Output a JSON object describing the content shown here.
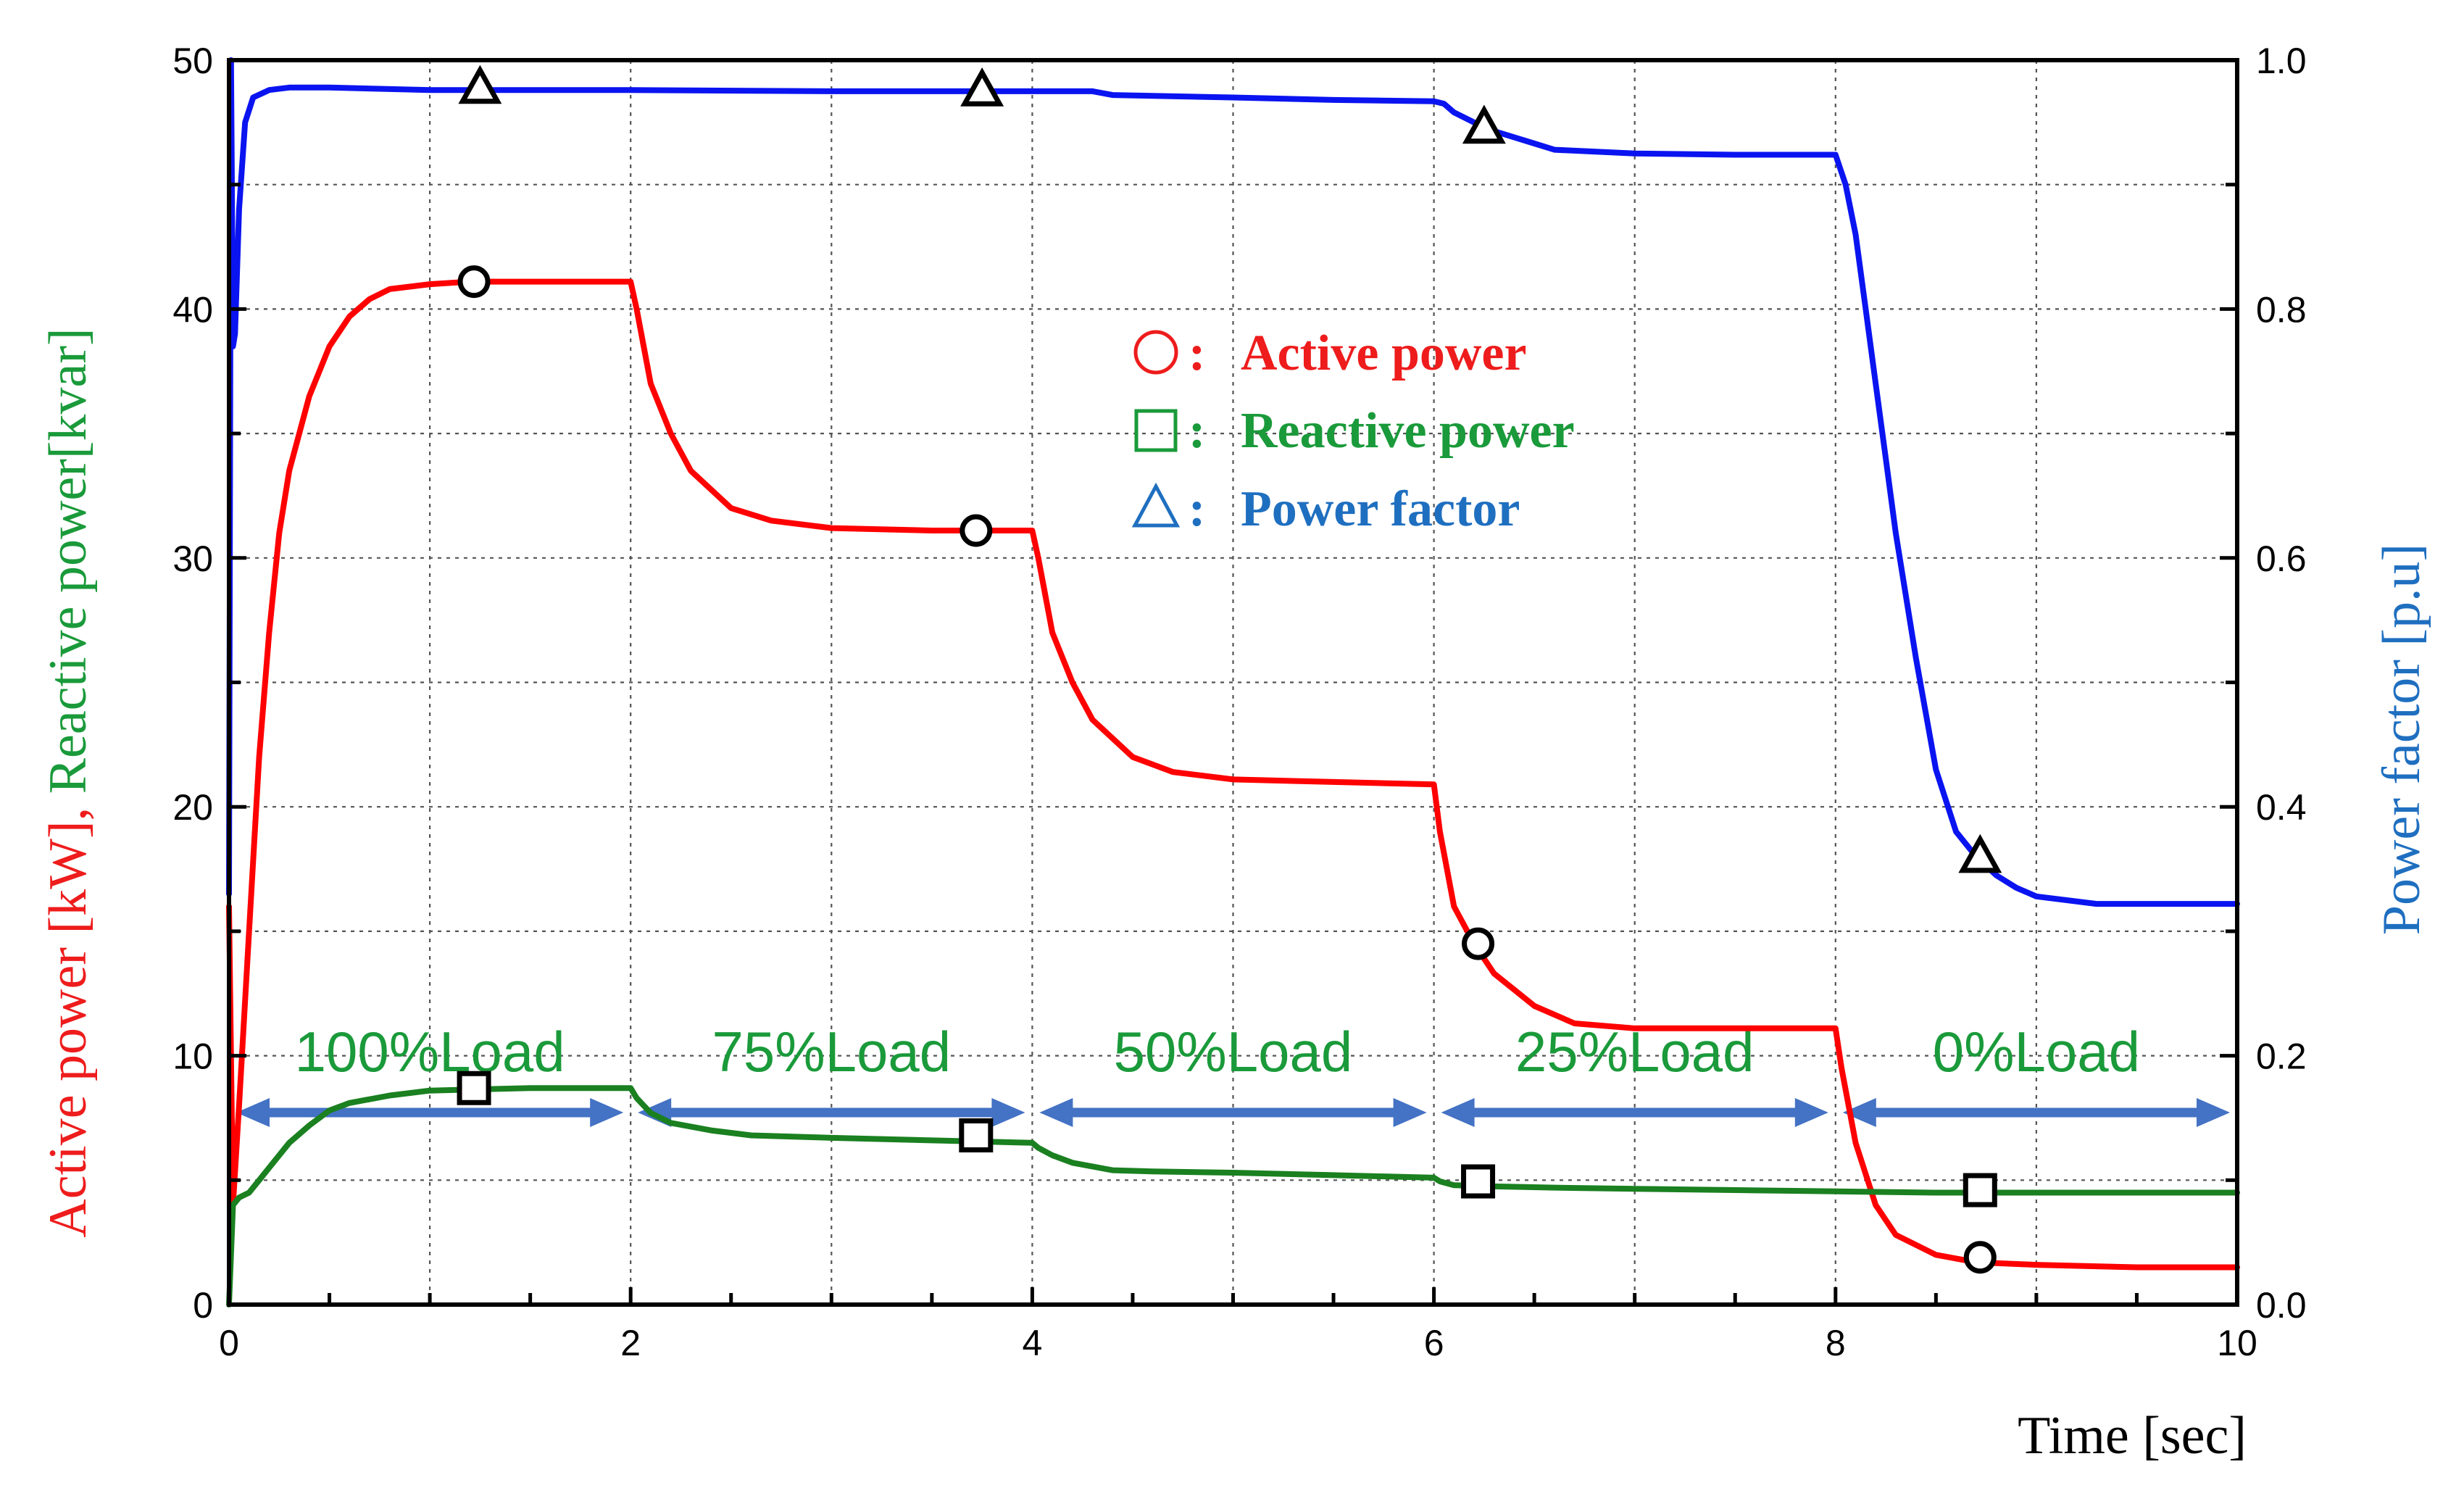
{
  "chart_data": {
    "type": "line",
    "xlabel": "Time [sec]",
    "ylabel_left": {
      "parts": [
        {
          "text": "Active power [kW], ",
          "color": "#ee1c1c"
        },
        {
          "text": "Reactive power[kvar]",
          "color": "#1a9a3a"
        }
      ]
    },
    "ylabel_right": "Power factor [p.u]",
    "xlim": [
      0,
      10
    ],
    "ylim_left": [
      0,
      50
    ],
    "ylim_right": [
      0.0,
      1.0
    ],
    "x_ticks": [
      "0",
      "2",
      "4",
      "6",
      "8",
      "10"
    ],
    "y_ticks_left": [
      "0",
      "10",
      "20",
      "30",
      "40",
      "50"
    ],
    "y_ticks_right": [
      "0.0",
      "0.2",
      "0.4",
      "0.6",
      "0.8",
      "1.0"
    ],
    "grid": true,
    "legend": {
      "placement": "upper-center",
      "entries": [
        {
          "marker": "circle",
          "label": "Active power",
          "color": "#ee1c1c",
          "prefix": ":"
        },
        {
          "marker": "square",
          "label": "Reactive power",
          "color": "#1a9a3a",
          "prefix": ":"
        },
        {
          "marker": "triangle",
          "label": "Power factor",
          "color": "#1f6fc0",
          "prefix": ":"
        }
      ]
    },
    "load_segments": [
      {
        "label": "100%Load",
        "start": 0.0,
        "end": 2.0
      },
      {
        "label": "75%Load",
        "start": 2.0,
        "end": 4.0
      },
      {
        "label": "50%Load",
        "start": 4.0,
        "end": 6.0
      },
      {
        "label": "25%Load",
        "start": 6.0,
        "end": 8.0
      },
      {
        "label": "0%Load",
        "start": 8.0,
        "end": 10.0
      }
    ],
    "series": [
      {
        "name": "Active power",
        "axis": "left",
        "color": "#ff0000",
        "marker": "circle",
        "x": [
          0,
          0.02,
          0.05,
          0.1,
          0.15,
          0.2,
          0.25,
          0.3,
          0.4,
          0.5,
          0.6,
          0.7,
          0.8,
          1.0,
          1.2,
          1.5,
          2.0,
          2.03,
          2.1,
          2.2,
          2.3,
          2.5,
          2.7,
          3.0,
          3.5,
          4.0,
          4.03,
          4.1,
          4.2,
          4.3,
          4.5,
          4.7,
          5.0,
          5.5,
          6.0,
          6.03,
          6.1,
          6.2,
          6.3,
          6.5,
          6.7,
          7.0,
          7.5,
          8.0,
          8.03,
          8.1,
          8.2,
          8.3,
          8.5,
          8.7,
          9.0,
          9.5,
          10.0
        ],
        "y": [
          16,
          4,
          8,
          15,
          22,
          27,
          31,
          33.5,
          36.5,
          38.5,
          39.7,
          40.4,
          40.8,
          41,
          41.1,
          41.1,
          41.1,
          40,
          37,
          35,
          33.5,
          32,
          31.5,
          31.2,
          31.1,
          31.1,
          30,
          27,
          25,
          23.5,
          22,
          21.4,
          21.1,
          21,
          20.9,
          19,
          16,
          14.5,
          13.3,
          12,
          11.3,
          11.1,
          11.1,
          11.1,
          9.5,
          6.5,
          4,
          2.8,
          2,
          1.7,
          1.6,
          1.5,
          1.5
        ],
        "marker_points": [
          [
            1.22,
            41.1
          ],
          [
            3.72,
            31.1
          ],
          [
            6.22,
            14.5
          ],
          [
            8.72,
            1.9
          ]
        ]
      },
      {
        "name": "Reactive power",
        "axis": "left",
        "color": "#1a8020",
        "marker": "square",
        "x": [
          0,
          0.02,
          0.05,
          0.1,
          0.15,
          0.2,
          0.3,
          0.4,
          0.5,
          0.6,
          0.8,
          1.0,
          1.5,
          2.0,
          2.03,
          2.1,
          2.2,
          2.4,
          2.6,
          3.0,
          3.5,
          4.0,
          4.03,
          4.1,
          4.2,
          4.4,
          4.6,
          5.0,
          5.5,
          6.0,
          6.03,
          6.1,
          6.3,
          6.6,
          7.0,
          7.5,
          8.0,
          8.5,
          9.0,
          10.0
        ],
        "y": [
          0,
          4,
          4.3,
          4.5,
          5,
          5.5,
          6.5,
          7.2,
          7.8,
          8.1,
          8.4,
          8.6,
          8.7,
          8.7,
          8.3,
          7.7,
          7.3,
          7.0,
          6.8,
          6.7,
          6.6,
          6.5,
          6.3,
          6.0,
          5.7,
          5.4,
          5.35,
          5.3,
          5.2,
          5.1,
          4.95,
          4.8,
          4.75,
          4.7,
          4.65,
          4.6,
          4.55,
          4.5,
          4.5,
          4.5
        ],
        "marker_points": [
          [
            1.22,
            8.7
          ],
          [
            3.72,
            6.8
          ],
          [
            6.22,
            4.95
          ],
          [
            8.72,
            4.6
          ]
        ]
      },
      {
        "name": "Power factor",
        "axis": "right",
        "color": "#0a14f0",
        "marker": "triangle",
        "x": [
          0,
          0.01,
          0.02,
          0.03,
          0.05,
          0.08,
          0.12,
          0.2,
          0.3,
          0.5,
          1.0,
          2.0,
          3.0,
          4.0,
          4.3,
          4.4,
          5.0,
          5.5,
          6.0,
          6.05,
          6.1,
          6.2,
          6.3,
          6.5,
          6.6,
          7.0,
          7.5,
          8.0,
          8.05,
          8.1,
          8.15,
          8.2,
          8.25,
          8.3,
          8.4,
          8.5,
          8.6,
          8.7,
          8.8,
          8.9,
          9.0,
          9.3,
          9.5,
          10.0
        ],
        "y": [
          0.33,
          1.0,
          0.77,
          0.78,
          0.88,
          0.95,
          0.97,
          0.976,
          0.978,
          0.978,
          0.976,
          0.976,
          0.975,
          0.975,
          0.975,
          0.972,
          0.97,
          0.968,
          0.967,
          0.965,
          0.958,
          0.95,
          0.943,
          0.933,
          0.928,
          0.925,
          0.924,
          0.924,
          0.9,
          0.86,
          0.8,
          0.74,
          0.68,
          0.62,
          0.52,
          0.43,
          0.38,
          0.36,
          0.345,
          0.335,
          0.328,
          0.322,
          0.322,
          0.322
        ],
        "marker_points": [
          [
            1.25,
            0.978
          ],
          [
            3.75,
            0.976
          ],
          [
            6.25,
            0.946
          ],
          [
            8.72,
            0.36
          ]
        ]
      }
    ]
  }
}
